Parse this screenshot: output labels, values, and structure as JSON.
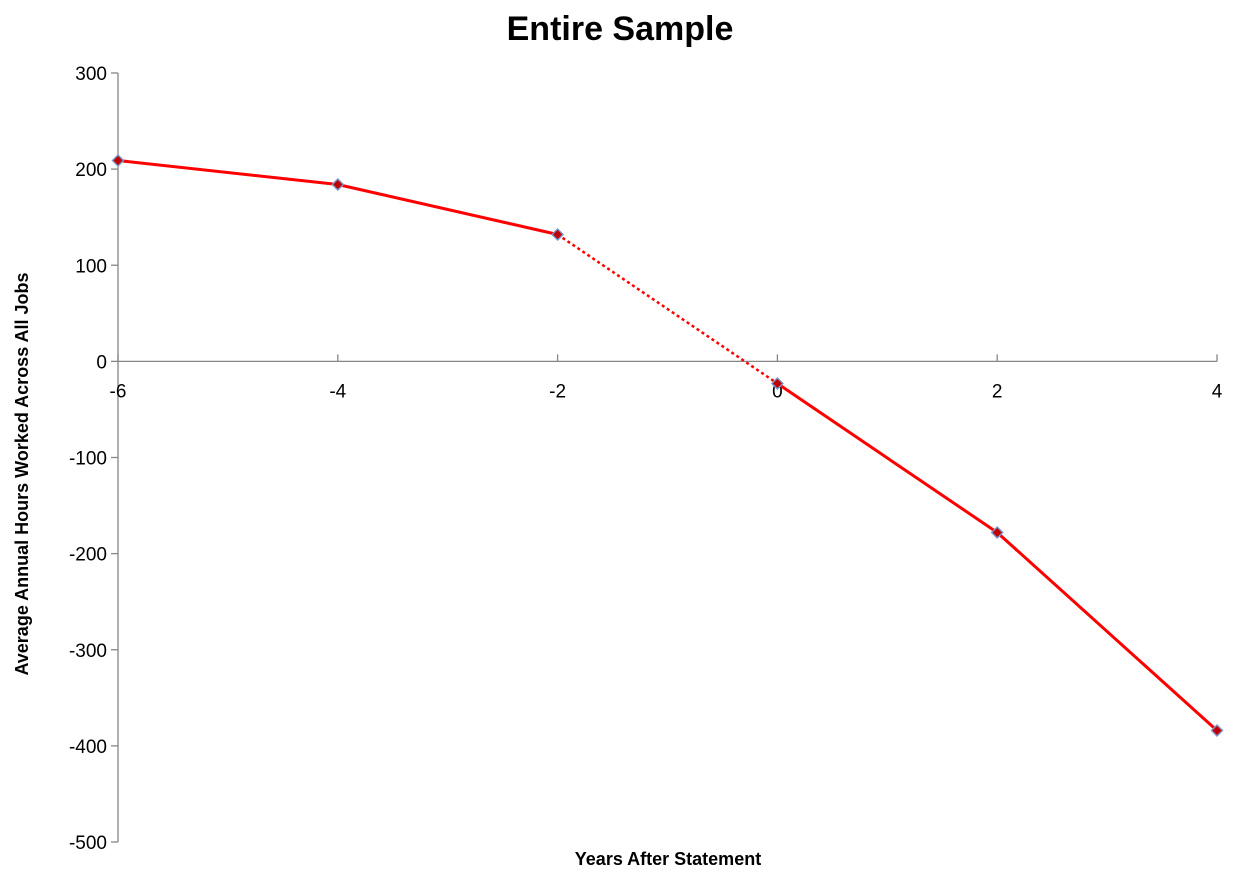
{
  "chart_data": {
    "type": "line",
    "title": "Entire Sample",
    "xlabel": "Years After Statement",
    "ylabel": "Average Annual Hours Worked Across All Jobs",
    "xlim": [
      -6,
      4
    ],
    "ylim": [
      -500,
      300
    ],
    "x_ticks": [
      -6,
      -4,
      -2,
      0,
      2,
      4
    ],
    "x_tick_labels": [
      "-6",
      "-4",
      "-2",
      "0",
      "2",
      "4"
    ],
    "y_ticks": [
      300,
      200,
      100,
      0,
      -100,
      -200,
      -300,
      -400,
      -500
    ],
    "y_tick_labels": [
      "300",
      "200",
      "100",
      "0",
      "-100",
      "-200",
      "-300",
      "-400",
      "-500"
    ],
    "grid": false,
    "legend": "none",
    "series": [
      {
        "x": [
          -6,
          -4,
          -2,
          0,
          2,
          4
        ],
        "values": [
          209,
          184,
          132,
          -23,
          -178,
          -384
        ],
        "line_color": "#ff0000",
        "marker_fill": "#c00000",
        "marker_edge": "#7b93c9",
        "marker": "diamond",
        "dotted_segments": [
          [
            -2,
            0
          ]
        ]
      }
    ]
  }
}
